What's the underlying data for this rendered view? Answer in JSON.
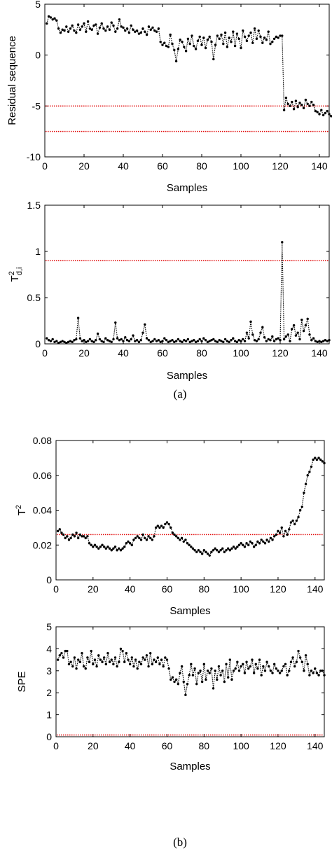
{
  "captions": {
    "a": "(a)",
    "b": "(b)"
  },
  "chart_data": [
    {
      "type": "line",
      "panel": "a-top",
      "xlabel": "Samples",
      "ylabel": "Residual sequence",
      "xlim": [
        0,
        145
      ],
      "ylim": [
        -10,
        5
      ],
      "xticks": [
        0,
        20,
        40,
        60,
        80,
        100,
        120,
        140
      ],
      "yticks": [
        5,
        0,
        -5,
        -10
      ],
      "thresholds": [
        -5,
        -7.5
      ],
      "colors": {
        "series": "#000000",
        "threshold": "#e00000"
      },
      "y": [
        3.1,
        3.8,
        3.7,
        3.5,
        3.6,
        3.4,
        2.6,
        2.2,
        2.5,
        2.4,
        2.8,
        2.3,
        2.6,
        2.9,
        2.4,
        2.2,
        3.0,
        2.5,
        2.8,
        3.1,
        2.3,
        3.3,
        2.6,
        2.5,
        2.9,
        3.0,
        2.1,
        2.7,
        3.1,
        2.6,
        2.4,
        2.8,
        2.5,
        3.2,
        2.9,
        2.3,
        2.6,
        3.5,
        2.8,
        2.7,
        2.4,
        2.6,
        2.2,
        2.9,
        2.5,
        2.3,
        2.4,
        2.1,
        2.2,
        2.6,
        2.3,
        2.0,
        2.8,
        2.5,
        2.7,
        2.4,
        2.3,
        2.6,
        1.3,
        1.0,
        1.2,
        0.9,
        0.8,
        2.0,
        1.1,
        0.5,
        -0.6,
        0.6,
        1.5,
        1.3,
        0.8,
        0.4,
        1.6,
        1.1,
        1.9,
        0.9,
        0.6,
        1.4,
        1.8,
        1.0,
        1.7,
        0.7,
        1.5,
        1.8,
        1.3,
        -0.4,
        1.0,
        1.9,
        1.6,
        2.0,
        1.1,
        2.2,
        0.8,
        1.7,
        1.3,
        2.3,
        0.9,
        2.1,
        1.6,
        0.7,
        2.4,
        1.8,
        1.4,
        1.9,
        2.2,
        1.2,
        2.6,
        1.6,
        2.4,
        1.8,
        1.2,
        1.7,
        1.5,
        2.3,
        1.1,
        1.3,
        1.6,
        1.8,
        1.7,
        1.9,
        1.9,
        -5.4,
        -4.2,
        -4.8,
        -5.0,
        -4.6,
        -5.3,
        -4.5,
        -5.1,
        -4.7,
        -4.9,
        -5.2,
        -4.4,
        -4.8,
        -5.0,
        -4.6,
        -4.9,
        -5.5,
        -5.6,
        -5.8,
        -5.4,
        -5.9,
        -5.7,
        -5.5,
        -5.8,
        -6.0
      ]
    },
    {
      "type": "line",
      "panel": "a-bottom",
      "xlabel": "Samples",
      "ylabel": "T²d,i",
      "xlim": [
        0,
        145
      ],
      "ylim": [
        0,
        1.5
      ],
      "xticks": [
        0,
        20,
        40,
        60,
        80,
        100,
        120,
        140
      ],
      "yticks": [
        1.5,
        1,
        0.5,
        0
      ],
      "thresholds": [
        0.9
      ],
      "colors": {
        "series": "#000000",
        "threshold": "#e00000"
      },
      "y": [
        0.06,
        0.04,
        0.03,
        0.05,
        0.02,
        0.03,
        0.01,
        0.02,
        0.03,
        0.02,
        0.01,
        0.02,
        0.03,
        0.02,
        0.04,
        0.05,
        0.28,
        0.06,
        0.03,
        0.04,
        0.02,
        0.03,
        0.05,
        0.03,
        0.02,
        0.04,
        0.11,
        0.05,
        0.03,
        0.02,
        0.06,
        0.04,
        0.03,
        0.02,
        0.05,
        0.23,
        0.06,
        0.04,
        0.05,
        0.03,
        0.07,
        0.04,
        0.03,
        0.05,
        0.09,
        0.03,
        0.04,
        0.02,
        0.04,
        0.12,
        0.21,
        0.06,
        0.04,
        0.02,
        0.03,
        0.05,
        0.03,
        0.04,
        0.02,
        0.03,
        0.06,
        0.04,
        0.02,
        0.03,
        0.04,
        0.02,
        0.03,
        0.05,
        0.03,
        0.02,
        0.04,
        0.03,
        0.05,
        0.02,
        0.03,
        0.04,
        0.02,
        0.03,
        0.05,
        0.03,
        0.06,
        0.04,
        0.02,
        0.03,
        0.04,
        0.05,
        0.03,
        0.02,
        0.04,
        0.03,
        0.02,
        0.05,
        0.03,
        0.02,
        0.04,
        0.06,
        0.03,
        0.02,
        0.04,
        0.03,
        0.05,
        0.03,
        0.12,
        0.06,
        0.24,
        0.1,
        0.04,
        0.03,
        0.05,
        0.12,
        0.18,
        0.07,
        0.03,
        0.05,
        0.04,
        0.08,
        0.03,
        0.05,
        0.06,
        0.04,
        1.1,
        0.05,
        0.08,
        0.1,
        0.03,
        0.16,
        0.2,
        0.09,
        0.12,
        0.05,
        0.26,
        0.14,
        0.2,
        0.27,
        0.1,
        0.04,
        0.06,
        0.03,
        0.02,
        0.03,
        0.02,
        0.03,
        0.04,
        0.03,
        0.04
      ]
    },
    {
      "type": "line",
      "panel": "b-top",
      "xlabel": "Samples",
      "ylabel": "T²",
      "xlim": [
        0,
        145
      ],
      "ylim": [
        0,
        0.08
      ],
      "xticks": [
        0,
        20,
        40,
        60,
        80,
        100,
        120,
        140
      ],
      "yticks": [
        0.08,
        0.06,
        0.04,
        0.02,
        0
      ],
      "thresholds": [
        0.026
      ],
      "colors": {
        "series": "#000000",
        "threshold": "#e00000"
      },
      "y": [
        0.028,
        0.029,
        0.027,
        0.026,
        0.024,
        0.025,
        0.023,
        0.024,
        0.026,
        0.025,
        0.027,
        0.024,
        0.026,
        0.025,
        0.025,
        0.024,
        0.025,
        0.021,
        0.02,
        0.019,
        0.02,
        0.019,
        0.018,
        0.019,
        0.02,
        0.019,
        0.018,
        0.019,
        0.018,
        0.017,
        0.018,
        0.019,
        0.017,
        0.018,
        0.017,
        0.018,
        0.019,
        0.021,
        0.022,
        0.021,
        0.02,
        0.023,
        0.024,
        0.025,
        0.024,
        0.023,
        0.026,
        0.024,
        0.023,
        0.025,
        0.024,
        0.023,
        0.025,
        0.03,
        0.031,
        0.03,
        0.031,
        0.03,
        0.032,
        0.033,
        0.032,
        0.03,
        0.027,
        0.026,
        0.025,
        0.024,
        0.023,
        0.024,
        0.022,
        0.023,
        0.021,
        0.02,
        0.019,
        0.018,
        0.017,
        0.016,
        0.017,
        0.016,
        0.015,
        0.017,
        0.016,
        0.015,
        0.014,
        0.016,
        0.017,
        0.018,
        0.017,
        0.016,
        0.017,
        0.018,
        0.016,
        0.017,
        0.018,
        0.017,
        0.018,
        0.019,
        0.018,
        0.019,
        0.02,
        0.021,
        0.02,
        0.019,
        0.021,
        0.02,
        0.022,
        0.021,
        0.019,
        0.02,
        0.022,
        0.021,
        0.023,
        0.022,
        0.021,
        0.023,
        0.022,
        0.024,
        0.023,
        0.025,
        0.026,
        0.028,
        0.027,
        0.03,
        0.025,
        0.028,
        0.026,
        0.029,
        0.033,
        0.034,
        0.032,
        0.034,
        0.036,
        0.04,
        0.042,
        0.05,
        0.055,
        0.06,
        0.062,
        0.065,
        0.069,
        0.07,
        0.069,
        0.07,
        0.069,
        0.068,
        0.067
      ]
    },
    {
      "type": "line",
      "panel": "b-bottom",
      "xlabel": "Samples",
      "ylabel": "SPE",
      "xlim": [
        0,
        145
      ],
      "ylim": [
        0,
        5
      ],
      "xticks": [
        0,
        20,
        40,
        60,
        80,
        100,
        120,
        140
      ],
      "yticks": [
        5,
        4,
        3,
        2,
        1,
        0
      ],
      "thresholds": [
        0.08
      ],
      "colors": {
        "series": "#000000",
        "threshold": "#e00000"
      },
      "y": [
        3.5,
        3.7,
        3.8,
        3.6,
        3.9,
        3.9,
        3.3,
        3.4,
        3.2,
        3.6,
        3.1,
        3.5,
        3.4,
        3.8,
        3.2,
        3.1,
        3.6,
        3.4,
        3.9,
        3.3,
        3.5,
        3.2,
        3.7,
        3.5,
        3.4,
        3.6,
        3.3,
        3.8,
        3.4,
        3.5,
        3.3,
        3.6,
        3.2,
        3.4,
        4.0,
        3.9,
        3.4,
        3.8,
        3.5,
        3.3,
        3.6,
        3.2,
        3.5,
        3.1,
        3.4,
        3.3,
        3.6,
        3.5,
        3.7,
        3.2,
        3.8,
        3.3,
        3.5,
        3.4,
        3.6,
        3.3,
        3.5,
        3.2,
        3.6,
        3.5,
        3.1,
        2.6,
        2.7,
        2.5,
        2.6,
        2.4,
        2.9,
        3.2,
        2.5,
        1.9,
        2.4,
        2.8,
        3.3,
        2.8,
        3.1,
        2.4,
        2.9,
        3.0,
        2.5,
        3.3,
        2.6,
        3.0,
        2.9,
        3.1,
        2.2,
        3.0,
        2.6,
        3.2,
        2.8,
        3.0,
        2.5,
        3.3,
        2.7,
        3.5,
        2.6,
        3.0,
        3.1,
        3.4,
        3.0,
        3.2,
        3.3,
        2.9,
        3.4,
        3.1,
        3.2,
        3.5,
        2.9,
        3.3,
        3.1,
        3.5,
        2.8,
        3.2,
        3.0,
        3.4,
        3.2,
        3.0,
        2.9,
        3.3,
        3.1,
        3.0,
        2.9,
        3.0,
        3.2,
        3.3,
        2.8,
        3.0,
        3.4,
        3.6,
        3.2,
        3.4,
        3.9,
        3.6,
        3.4,
        3.0,
        3.7,
        3.3,
        2.8,
        3.0,
        2.9,
        3.1,
        2.9,
        2.8,
        3.0,
        3.0,
        2.8
      ]
    }
  ]
}
